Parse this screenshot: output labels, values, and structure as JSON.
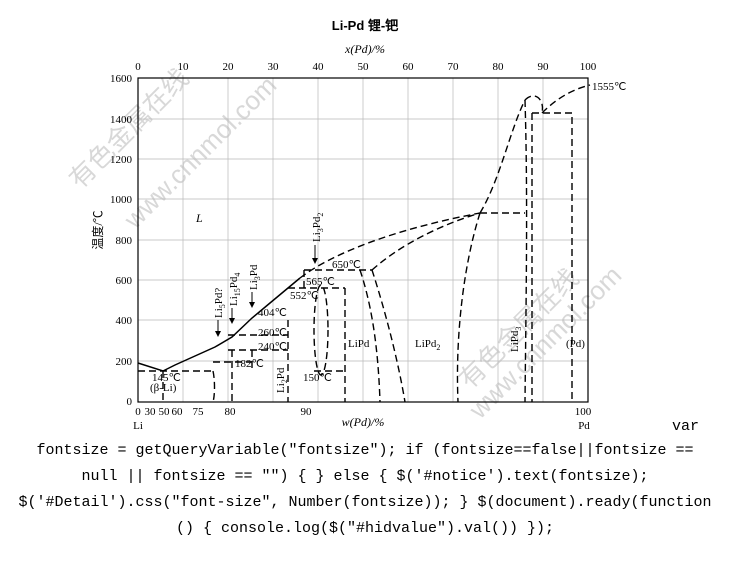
{
  "diagram": {
    "title": "Li-Pd  锂-钯",
    "top_axis_label": "x(Pd)/%",
    "top_ticks": [
      "0",
      "10",
      "20",
      "30",
      "40",
      "50",
      "60",
      "70",
      "80",
      "90",
      "100"
    ],
    "left_axis_label": "温度/℃",
    "y_ticks": [
      "1600",
      "1400",
      "1200",
      "1000",
      "800",
      "600",
      "400",
      "200",
      "0"
    ],
    "bottom_axis_label": "w(Pd)/%",
    "bottom_ticks": [
      "0",
      "30",
      "50",
      "60",
      "75",
      "80",
      "90",
      "100"
    ],
    "left_end_label": "Li",
    "right_end_label": "Pd",
    "temperatures": {
      "pd_melt": "1555℃",
      "t650": "650℃",
      "t565": "565℃",
      "t552": "552℃",
      "t404": "404℃",
      "t260": "260℃",
      "t240": "240℃",
      "t182": "182℃",
      "t150": "150℃",
      "t145": "145℃"
    },
    "phases": {
      "liquid": "L",
      "beta_li": "(β-Li)",
      "pd_solid": "(Pd)",
      "lipd": "LiPd",
      "lipd2": "LiPd",
      "lipd2_sub": "2",
      "lipd3": "LiPd",
      "lipd3_sub": "3",
      "li2pd": "Li",
      "li2pd_sub": "2",
      "li2pd_tail": "Pd",
      "li3pd2_a": "Li",
      "li3pd2_sub_a": "3",
      "li3pd2_b": "Pd",
      "li3pd2_sub_b": "2",
      "li3pd": "Li",
      "li3pd_sub": "3",
      "li3pd_tail": "Pd",
      "li15pd4_a": "Li",
      "li15pd4_sub_a": "15",
      "li15pd4_b": "Pd",
      "li15pd4_sub_b": "4",
      "li5pd_a": "Li",
      "li5pd_sub": "5",
      "li5pd_b": "Pd?"
    },
    "watermark": {
      "text1": "有色金属在线",
      "text2": "www.cnnmol.com"
    }
  },
  "code": {
    "line1": "var",
    "line2": "fontsize = getQueryVariable(\"fontsize\"); if (fontsize==false||fontsize ==",
    "line3": "null || fontsize == \"\") { } else { $('#notice').text(fontsize);",
    "line4": "$('#Detail').css(\"font-size\", Number(fontsize)); } $(document).ready(function",
    "line5": "() { console.log($(\"#hidvalue\").val()) });"
  }
}
